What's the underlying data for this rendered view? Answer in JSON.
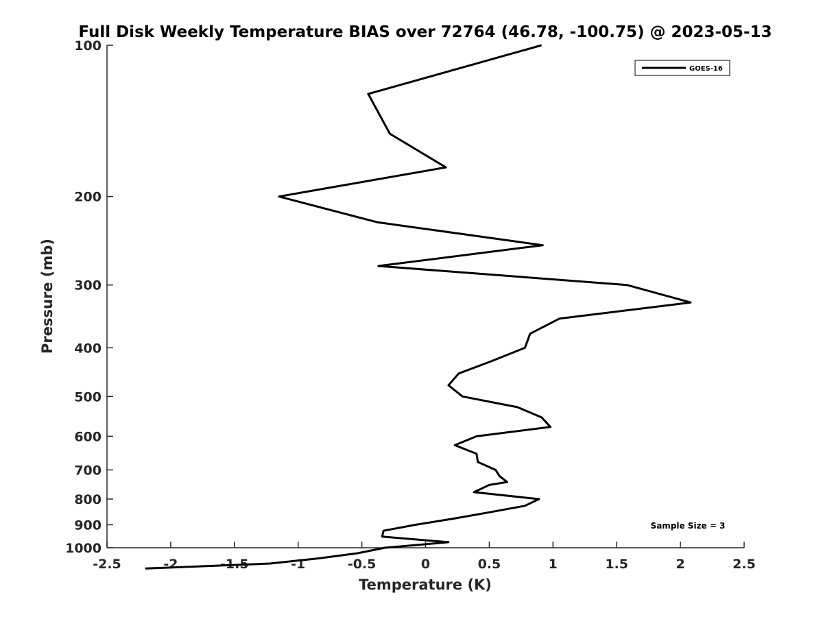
{
  "chart_data": {
    "type": "line",
    "title": "Full Disk Weekly Temperature BIAS over 72764 (46.78, -100.75) @ 2023-05-13",
    "xlabel": "Temperature (K)",
    "ylabel": "Pressure (mb)",
    "xlim": [
      -2.5,
      2.5
    ],
    "ylim": [
      100,
      1000
    ],
    "y_scale": "log",
    "y_reversed": true,
    "grid": false,
    "x_ticks": [
      "-2.5",
      "-2",
      "-1.5",
      "-1",
      "-0.5",
      "0",
      "0.5",
      "1",
      "1.5",
      "2",
      "2.5"
    ],
    "y_ticks": [
      "100",
      "200",
      "300",
      "400",
      "500",
      "600",
      "700",
      "800",
      "900",
      "1000"
    ],
    "legend": {
      "position": "top-right",
      "entries": [
        "GOES-16"
      ]
    },
    "annotation": "Sample Size = 3",
    "series_color": "#000000",
    "series": [
      {
        "name": "GOES-16",
        "x": [
          0.91,
          -0.45,
          -0.28,
          0.16,
          -1.15,
          -0.38,
          0.92,
          -0.37,
          1.58,
          2.08,
          1.05,
          0.82,
          0.78,
          0.52,
          0.26,
          0.18,
          0.29,
          0.72,
          0.91,
          0.98,
          0.4,
          0.23,
          0.4,
          0.41,
          0.55,
          0.58,
          0.64,
          0.5,
          0.38,
          0.89,
          0.78,
          0.5,
          0.22,
          -0.08,
          -0.33,
          -0.34,
          0.18,
          -0.32,
          -0.53,
          -0.84,
          -1.22,
          -2.2
        ],
        "y": [
          100,
          125,
          150,
          175,
          200,
          225,
          250,
          275,
          300,
          325,
          350,
          375,
          400,
          425,
          450,
          475,
          500,
          525,
          550,
          575,
          600,
          625,
          650,
          675,
          700,
          720,
          740,
          750,
          775,
          800,
          825,
          850,
          875,
          900,
          925,
          950,
          975,
          1000,
          1025,
          1050,
          1075,
          1100
        ]
      }
    ]
  }
}
